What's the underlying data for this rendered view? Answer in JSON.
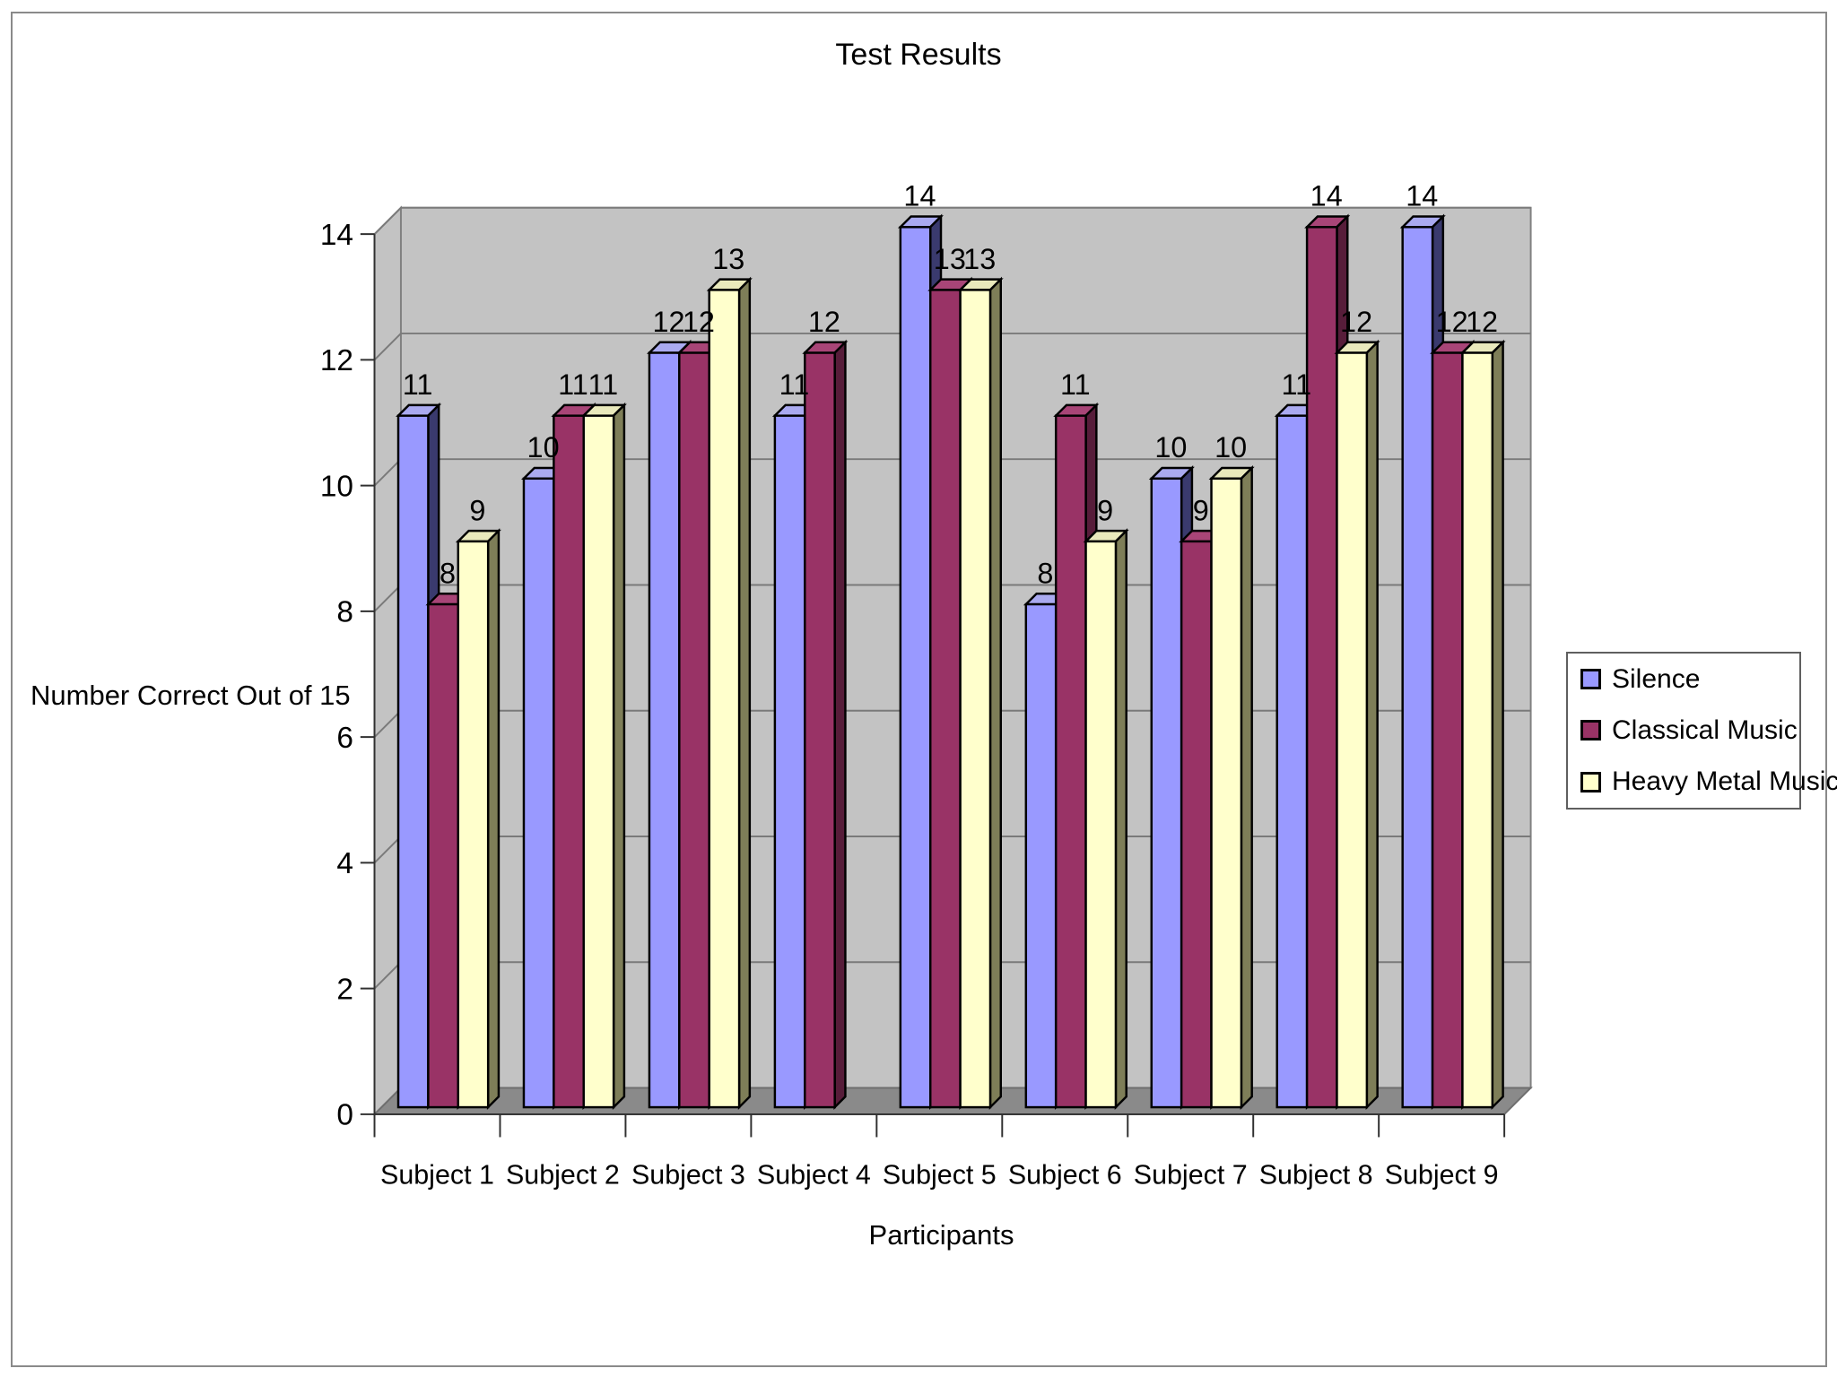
{
  "frame": {
    "background": "#ffffff",
    "border_color": "#8a8a8a"
  },
  "chart_data": {
    "type": "bar",
    "style": "3d-clustered-column",
    "title": "Test Results",
    "xlabel": "Participants",
    "ylabel": "Number Correct Out of 15",
    "categories": [
      "Subject 1",
      "Subject 2",
      "Subject 3",
      "Subject 4",
      "Subject 5",
      "Subject 6",
      "Subject 7",
      "Subject 8",
      "Subject 9"
    ],
    "series": [
      {
        "name": "Silence",
        "color": "#9999FF",
        "top_color": "#AAAAF0",
        "side_color": "#3A3A6E",
        "values": [
          11,
          10,
          12,
          11,
          14,
          8,
          10,
          11,
          14
        ]
      },
      {
        "name": "Classical Music",
        "color": "#993366",
        "top_color": "#A84577",
        "side_color": "#571D3A",
        "values": [
          8,
          11,
          12,
          12,
          13,
          11,
          9,
          14,
          12
        ]
      },
      {
        "name": "Heavy Metal Music",
        "color": "#FFFFCC",
        "top_color": "#E9E9BC",
        "side_color": "#7E7E58",
        "values": [
          9,
          11,
          13,
          null,
          13,
          9,
          10,
          12,
          12
        ]
      }
    ],
    "ylim": [
      0,
      14
    ],
    "yticks": [
      0,
      2,
      4,
      6,
      8,
      10,
      12,
      14
    ],
    "grid": true,
    "data_labels": true,
    "legend_position": "right",
    "wall_color": "#C3C3C3",
    "wall_edge_color": "#808080",
    "floor_color": "#8A8A8A",
    "floor_edge_color": "#6E6E6E",
    "gridline_color": "#7A7A7A",
    "axis_color": "#303030",
    "text_color": "#000000"
  }
}
